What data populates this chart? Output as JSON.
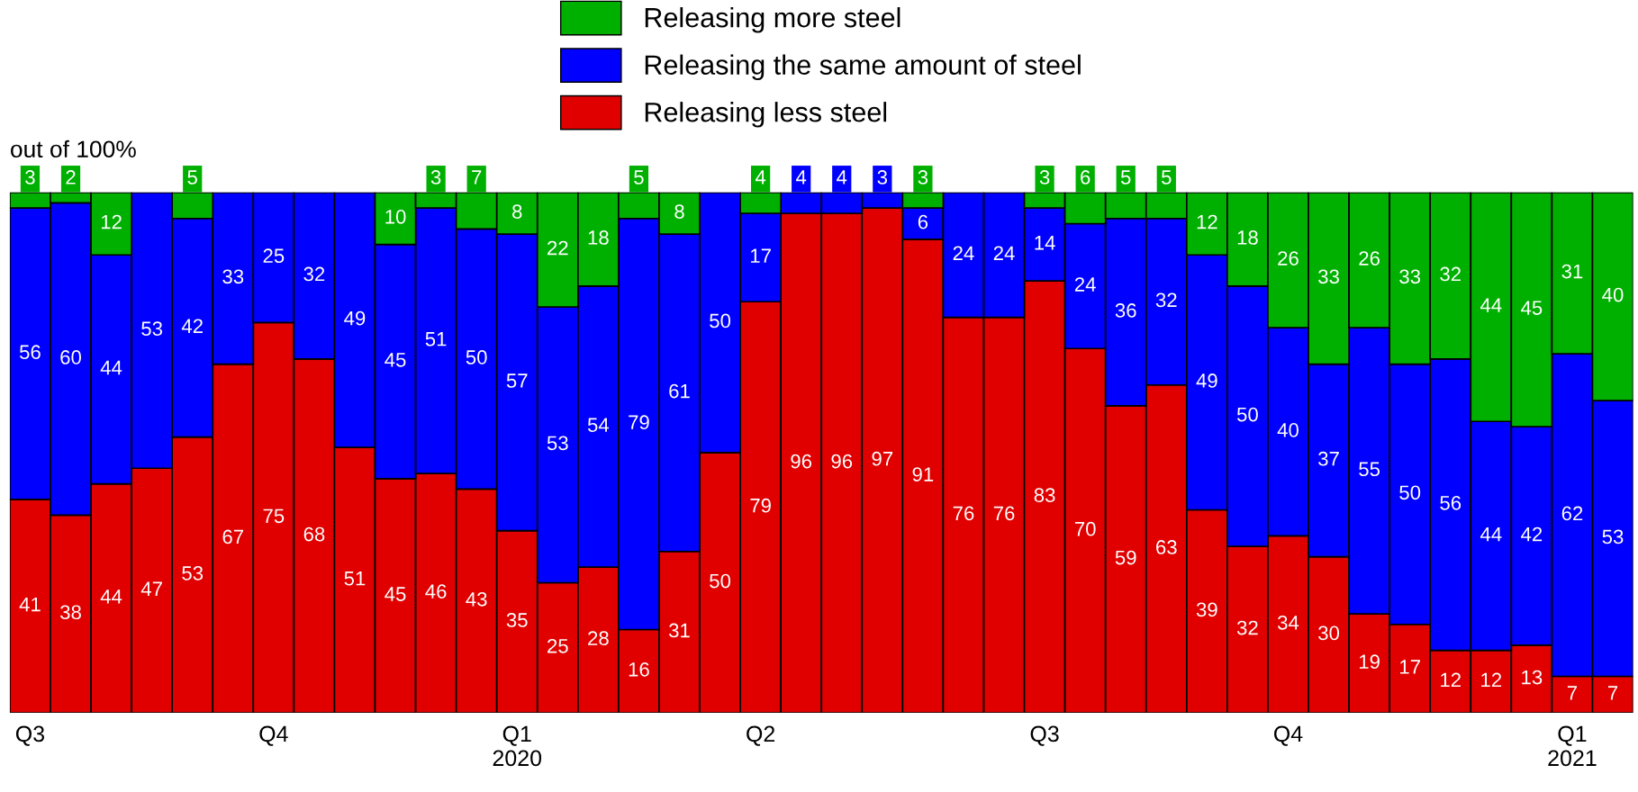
{
  "chart_data": {
    "type": "bar",
    "stacked": true,
    "ylabel": "out of 100%",
    "ylim": [
      0,
      100
    ],
    "tick_labels": "x",
    "legend": "top",
    "grid": false,
    "categories": [
      "Q3",
      null,
      null,
      null,
      null,
      null,
      "Q4",
      null,
      null,
      null,
      null,
      null,
      "Q1\n2020",
      null,
      null,
      null,
      null,
      null,
      "Q2",
      null,
      null,
      null,
      null,
      null,
      null,
      "Q3",
      null,
      null,
      null,
      null,
      null,
      "Q4",
      null,
      null,
      null,
      null,
      null,
      null,
      "Q1\n2021",
      null
    ],
    "series": [
      {
        "name": "Releasing less steel",
        "color": "#e00000",
        "values": [
          41,
          38,
          44,
          47,
          53,
          67,
          75,
          68,
          51,
          45,
          46,
          43,
          35,
          25,
          28,
          16,
          31,
          50,
          79,
          96,
          96,
          97,
          91,
          76,
          76,
          83,
          70,
          59,
          63,
          39,
          32,
          34,
          30,
          19,
          17,
          12,
          12,
          13,
          7,
          7
        ],
        "value_labels": [
          "41",
          "38",
          "44",
          "47",
          "53",
          "67",
          "75",
          "68",
          "51",
          "45",
          "46",
          "43",
          "35",
          "25",
          "28",
          "16",
          "31",
          "50",
          "79",
          "96",
          "96",
          "97",
          "91",
          "76",
          "76",
          "83",
          "70",
          "59",
          "63",
          "39",
          "32",
          "34",
          "30",
          "19",
          "17",
          "12",
          "12",
          "13",
          "7",
          "7"
        ]
      },
      {
        "name": "Releasing the same amount of steel",
        "color": "#0000ff",
        "values": [
          56,
          60,
          44,
          53,
          42,
          33,
          25,
          32,
          49,
          45,
          51,
          50,
          57,
          53,
          54,
          79,
          61,
          50,
          17,
          4,
          4,
          3,
          6,
          24,
          24,
          14,
          24,
          36,
          32,
          49,
          50,
          40,
          37,
          55,
          50,
          56,
          44,
          42,
          62,
          53
        ],
        "value_labels": [
          "56",
          "60",
          "44",
          "53",
          "42",
          "33",
          "25",
          "32",
          "49",
          "45",
          "51",
          "50",
          "57",
          "53",
          "54",
          "79",
          "61",
          "50",
          "17",
          "4",
          "4",
          "3",
          "6",
          "24",
          "24",
          "14",
          "24",
          "36",
          "32",
          "49",
          "50",
          "40",
          "37",
          "55",
          "50",
          "56",
          "44",
          "42",
          "62",
          "53"
        ]
      },
      {
        "name": "Releasing more steel",
        "color": "#00b000",
        "values": [
          3,
          2,
          12,
          null,
          5,
          null,
          null,
          null,
          null,
          10,
          3,
          7,
          8,
          22,
          18,
          5,
          8,
          null,
          4,
          null,
          null,
          null,
          3,
          null,
          null,
          3,
          6,
          5,
          5,
          12,
          18,
          26,
          33,
          26,
          33,
          32,
          44,
          45,
          31,
          40
        ],
        "value_labels": [
          "3",
          "2",
          "12",
          null,
          "5",
          null,
          null,
          null,
          null,
          "10",
          "3",
          "7",
          "8",
          "22",
          "18",
          "5",
          "8",
          null,
          "4",
          null,
          null,
          null,
          "3",
          null,
          null,
          "3",
          "6",
          "5",
          "5",
          "12",
          "18",
          "26",
          "33",
          "26",
          "33",
          "32",
          "44",
          "45",
          "31",
          "40"
        ]
      }
    ]
  }
}
